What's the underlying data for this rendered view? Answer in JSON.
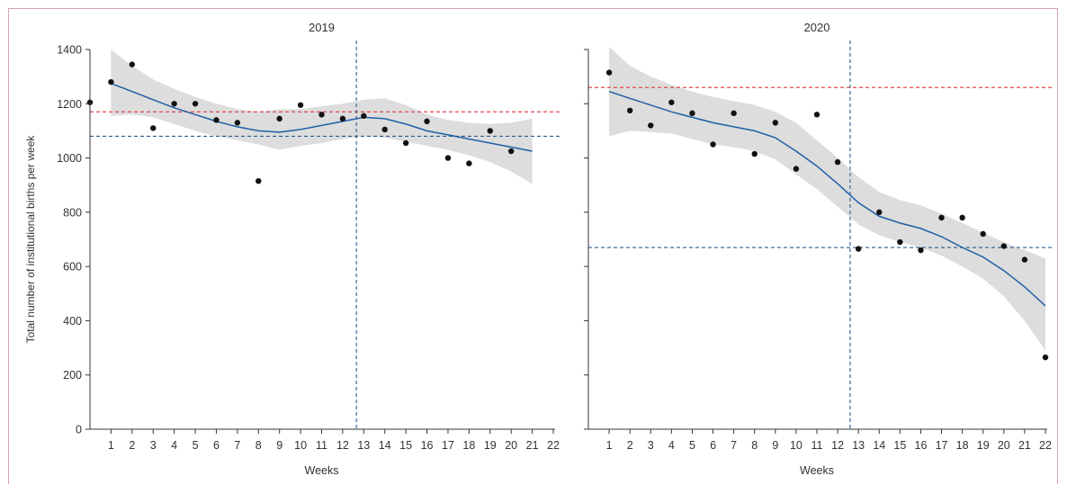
{
  "ylabel": "Total number of institutional births per week",
  "colors": {
    "fit_line": "#1f5fa6",
    "ci_band": "#d9d9d9",
    "points": "#111111",
    "red_reference": "#e0353a",
    "blue_reference": "#2a5d8c",
    "frame": "#d9a0b6"
  },
  "chart_data": [
    {
      "type": "scatter",
      "title": "2019",
      "xlabel": "Weeks",
      "ylabel": "Total number of institutional births per week",
      "xlim": [
        0,
        22
      ],
      "ylim": [
        0,
        1400
      ],
      "xticks": [
        1,
        2,
        3,
        4,
        5,
        6,
        7,
        8,
        9,
        10,
        11,
        12,
        13,
        14,
        15,
        16,
        17,
        18,
        19,
        20,
        21,
        22
      ],
      "yticks": [
        0,
        200,
        400,
        600,
        800,
        1000,
        1200,
        1400
      ],
      "grid": false,
      "points": {
        "x": [
          0,
          1,
          2,
          3,
          4,
          5,
          6,
          7,
          8,
          9,
          10,
          11,
          12,
          13,
          14,
          15,
          16,
          17,
          18,
          19,
          20
        ],
        "y": [
          1205,
          1280,
          1345,
          1110,
          1200,
          1200,
          1140,
          1130,
          915,
          1145,
          1195,
          1160,
          1145,
          1155,
          1105,
          1055,
          1135,
          1000,
          980,
          1100,
          1025
        ]
      },
      "fit": {
        "x": [
          1,
          2,
          3,
          4,
          5,
          6,
          7,
          8,
          9,
          10,
          11,
          12,
          13,
          14,
          15,
          16,
          17,
          18,
          19,
          20,
          21
        ],
        "y": [
          1275,
          1245,
          1215,
          1185,
          1160,
          1135,
          1115,
          1100,
          1095,
          1105,
          1120,
          1135,
          1150,
          1145,
          1125,
          1100,
          1085,
          1070,
          1055,
          1040,
          1025
        ],
        "lower": [
          1155,
          1160,
          1150,
          1125,
          1100,
          1080,
          1065,
          1050,
          1030,
          1045,
          1055,
          1070,
          1080,
          1075,
          1060,
          1045,
          1030,
          1010,
          985,
          950,
          905
        ],
        "upper": [
          1400,
          1340,
          1290,
          1255,
          1225,
          1200,
          1180,
          1170,
          1180,
          1180,
          1190,
          1200,
          1215,
          1220,
          1195,
          1160,
          1140,
          1130,
          1125,
          1130,
          1145
        ]
      },
      "hlines": [
        {
          "y": 1170,
          "color": "red"
        },
        {
          "y": 1080,
          "color": "blue"
        }
      ],
      "vline": {
        "x": 12.65
      }
    },
    {
      "type": "scatter",
      "title": "2020",
      "xlabel": "Weeks",
      "xlim": [
        0,
        22
      ],
      "ylim": [
        0,
        1400
      ],
      "xticks": [
        1,
        2,
        3,
        4,
        5,
        6,
        7,
        8,
        9,
        10,
        11,
        12,
        13,
        14,
        15,
        16,
        17,
        18,
        19,
        20,
        21,
        22
      ],
      "yticks": [
        0,
        200,
        400,
        600,
        800,
        1000,
        1200,
        1400
      ],
      "grid": false,
      "points": {
        "x": [
          1,
          2,
          3,
          4,
          5,
          6,
          7,
          8,
          9,
          10,
          11,
          12,
          13,
          14,
          15,
          16,
          17,
          18,
          19,
          20,
          21,
          22
        ],
        "y": [
          1315,
          1175,
          1120,
          1205,
          1165,
          1050,
          1165,
          1015,
          1130,
          960,
          1160,
          985,
          665,
          800,
          690,
          660,
          780,
          780,
          720,
          675,
          625,
          265
        ]
      },
      "fit": {
        "x": [
          1,
          2,
          3,
          4,
          5,
          6,
          7,
          8,
          9,
          10,
          11,
          12,
          13,
          14,
          15,
          16,
          17,
          18,
          19,
          20,
          21,
          22
        ],
        "y": [
          1245,
          1220,
          1195,
          1170,
          1150,
          1130,
          1115,
          1100,
          1075,
          1025,
          970,
          905,
          835,
          785,
          760,
          740,
          710,
          670,
          635,
          585,
          525,
          455
        ],
        "lower": [
          1080,
          1100,
          1095,
          1090,
          1070,
          1050,
          1040,
          1025,
          995,
          940,
          885,
          820,
          755,
          715,
          690,
          670,
          640,
          600,
          555,
          490,
          400,
          290
        ],
        "upper": [
          1410,
          1340,
          1300,
          1270,
          1245,
          1225,
          1210,
          1195,
          1170,
          1130,
          1065,
          1000,
          930,
          875,
          845,
          825,
          795,
          760,
          725,
          690,
          660,
          630
        ]
      },
      "hlines": [
        {
          "y": 1260,
          "color": "red"
        },
        {
          "y": 670,
          "color": "blue"
        }
      ],
      "vline": {
        "x": 12.6
      }
    }
  ]
}
